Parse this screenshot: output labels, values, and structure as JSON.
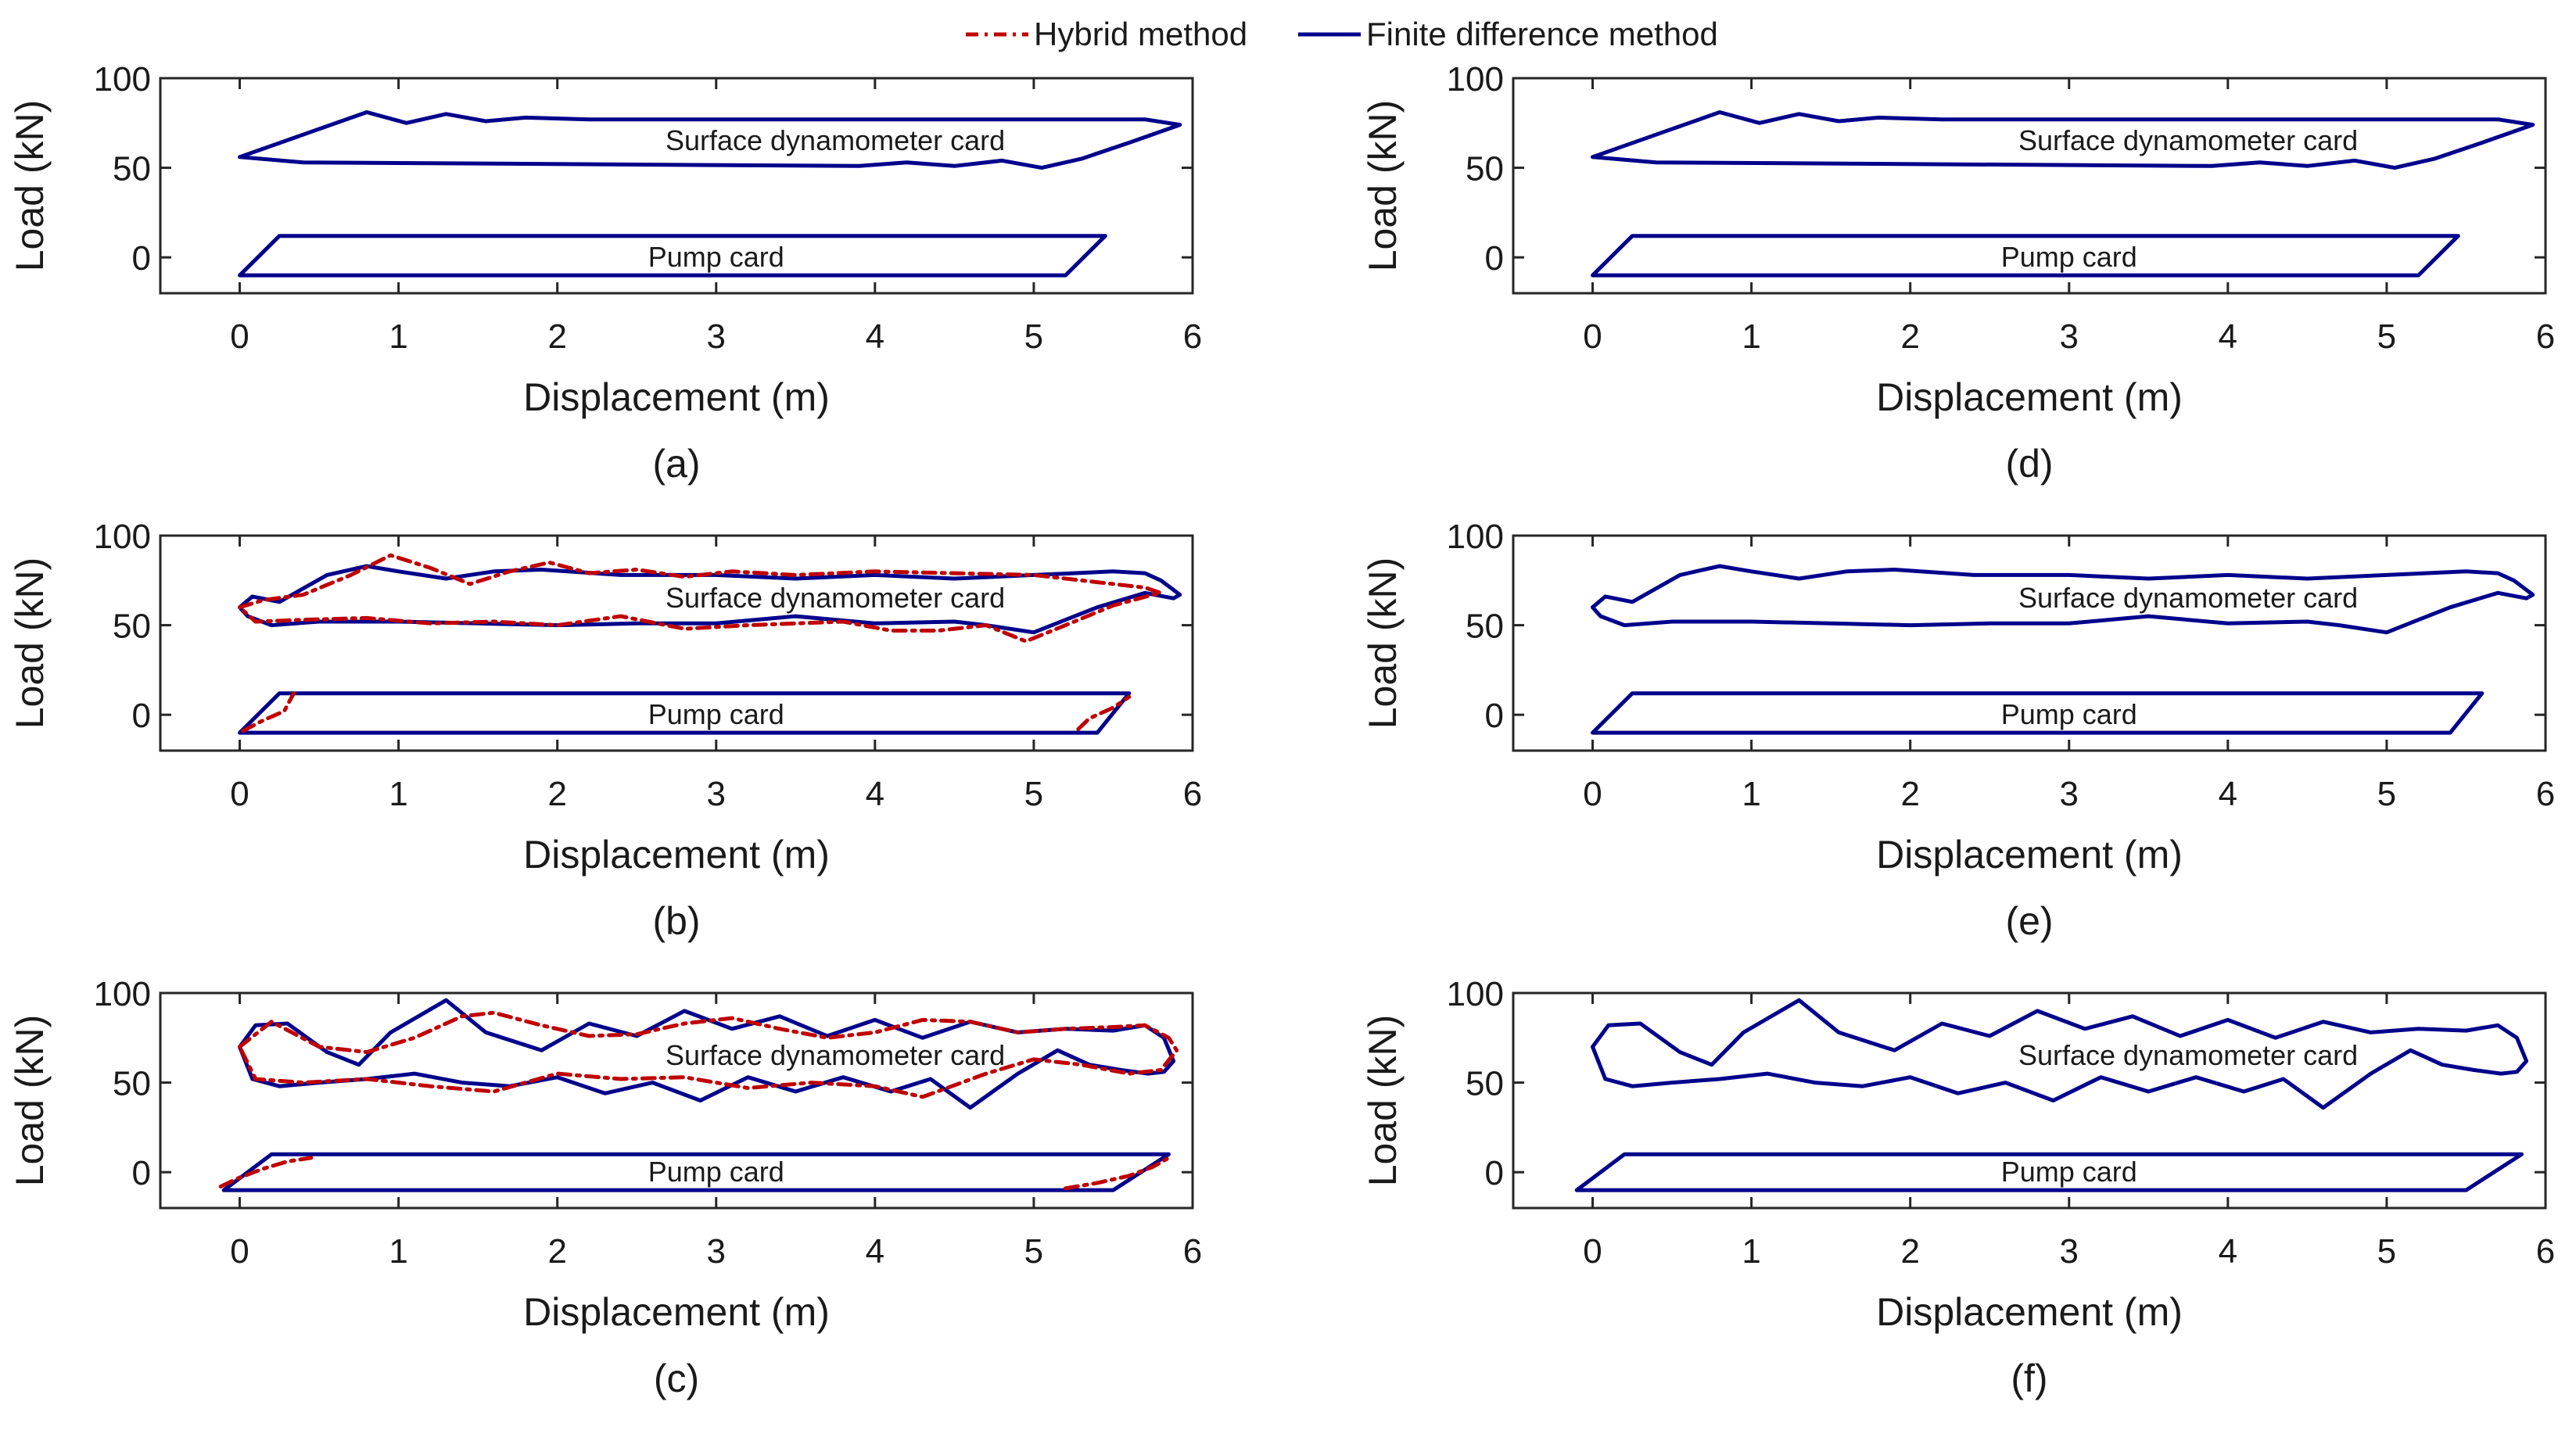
{
  "legend": [
    {
      "label": "Hybrid method",
      "color": "#c00000",
      "dash": true
    },
    {
      "label": "Finite difference method",
      "color": "#00008b",
      "dash": false
    }
  ],
  "chart_data": [
    {
      "id": "a",
      "type": "line",
      "caption": "(a)",
      "xlabel": "Displacement (m)",
      "ylabel": "Load (kN)",
      "xlim": [
        -0.5,
        6
      ],
      "ylim": [
        -20,
        100
      ],
      "xticks": [
        "0",
        "1",
        "2",
        "3",
        "4",
        "5",
        "6"
      ],
      "yticks": [
        "0",
        "50",
        "100"
      ],
      "annotations": [
        {
          "text": "Surface dynamometer card",
          "x": 3.75,
          "y": 65
        },
        {
          "text": "Pump card",
          "x": 3.0,
          "y": 0
        }
      ],
      "series": [
        {
          "name": "Finite difference method",
          "x": [
            0,
            0.8,
            1.05,
            1.3,
            1.55,
            1.8,
            2.2,
            5.7,
            5.92,
            5.6,
            5.3,
            5.05,
            4.8,
            4.5,
            4.2,
            3.9,
            0.4,
            0
          ],
          "y": [
            56,
            81,
            75,
            80,
            76,
            78,
            77,
            77,
            74,
            64,
            55,
            50,
            54,
            51,
            53,
            51,
            53,
            56
          ]
        },
        {
          "name": "Finite difference method",
          "x": [
            0,
            0.25,
            5.45,
            5.2,
            0
          ],
          "y": [
            -10,
            12,
            12,
            -10,
            -10
          ]
        }
      ]
    },
    {
      "id": "b",
      "type": "line",
      "caption": "(b)",
      "xlabel": "Displacement (m)",
      "ylabel": "Load (kN)",
      "xlim": [
        -0.5,
        6
      ],
      "ylim": [
        -20,
        100
      ],
      "xticks": [
        "0",
        "1",
        "2",
        "3",
        "4",
        "5",
        "6"
      ],
      "yticks": [
        "0",
        "50",
        "100"
      ],
      "annotations": [
        {
          "text": "Surface dynamometer card",
          "x": 3.75,
          "y": 65
        },
        {
          "text": "Pump card",
          "x": 3.0,
          "y": 0
        }
      ],
      "series": [
        {
          "name": "Finite difference method",
          "x": [
            0,
            0.08,
            0.25,
            0.55,
            0.8,
            1.0,
            1.3,
            1.6,
            1.9,
            2.4,
            3.0,
            3.5,
            4.0,
            4.5,
            5.0,
            5.5,
            5.7,
            5.8,
            5.92,
            5.88,
            5.7,
            5.4,
            5.2,
            5.0,
            4.7,
            4.5,
            4.0,
            3.5,
            3.0,
            2.5,
            2.0,
            1.5,
            1.0,
            0.5,
            0.2,
            0.05,
            0
          ],
          "y": [
            60,
            66,
            63,
            78,
            83,
            80,
            76,
            80,
            81,
            78,
            78,
            76,
            78,
            76,
            78,
            80,
            79,
            75,
            67,
            65,
            68,
            60,
            53,
            46,
            50,
            52,
            51,
            55,
            51,
            51,
            50,
            51,
            52,
            52,
            50,
            55,
            60
          ]
        },
        {
          "name": "Hybrid method",
          "x": [
            0,
            0.15,
            0.4,
            0.7,
            0.95,
            1.2,
            1.45,
            1.7,
            1.95,
            2.2,
            2.5,
            2.8,
            3.1,
            3.5,
            4.0,
            4.5,
            5.0,
            5.4,
            5.7,
            5.8,
            5.75,
            5.5,
            5.2,
            4.95,
            4.7,
            4.4,
            4.1,
            3.8,
            3.5,
            3.2,
            2.8,
            2.4,
            2.0,
            1.6,
            1.2,
            0.8,
            0.4,
            0.1,
            0
          ],
          "y": [
            60,
            64,
            67,
            78,
            89,
            82,
            73,
            80,
            85,
            79,
            81,
            77,
            80,
            78,
            80,
            79,
            78,
            74,
            71,
            68,
            67,
            61,
            50,
            41,
            50,
            47,
            47,
            52,
            51,
            50,
            48,
            55,
            50,
            52,
            51,
            54,
            53,
            52,
            60
          ]
        },
        {
          "name": "Finite difference method",
          "x": [
            0,
            0.25,
            5.6,
            5.4,
            0
          ],
          "y": [
            -10,
            12,
            12,
            -10,
            -10
          ]
        },
        {
          "name": "Hybrid method",
          "x": [
            0.02,
            0.15,
            0.28,
            0.34
          ],
          "y": [
            -9,
            -3,
            2,
            12
          ]
        },
        {
          "name": "Hybrid method",
          "x": [
            5.28,
            5.35,
            5.5,
            5.6
          ],
          "y": [
            -8,
            -2,
            4,
            10
          ]
        }
      ]
    },
    {
      "id": "c",
      "type": "line",
      "caption": "(c)",
      "xlabel": "Displacement (m)",
      "ylabel": "Load (kN)",
      "xlim": [
        -0.5,
        6
      ],
      "ylim": [
        -20,
        100
      ],
      "xticks": [
        "0",
        "1",
        "2",
        "3",
        "4",
        "5",
        "6"
      ],
      "yticks": [
        "0",
        "50",
        "100"
      ],
      "annotations": [
        {
          "text": "Surface dynamometer card",
          "x": 3.75,
          "y": 65
        },
        {
          "text": "Pump card",
          "x": 3.0,
          "y": 0
        }
      ],
      "series": [
        {
          "name": "Finite difference method",
          "x": [
            0,
            0.1,
            0.3,
            0.55,
            0.75,
            0.95,
            1.3,
            1.55,
            1.9,
            2.2,
            2.5,
            2.8,
            3.1,
            3.4,
            3.7,
            4.0,
            4.3,
            4.6,
            4.9,
            5.2,
            5.5,
            5.7,
            5.82,
            5.88,
            5.82,
            5.72,
            5.55,
            5.35,
            5.15,
            4.9,
            4.6,
            4.35,
            4.1,
            3.8,
            3.5,
            3.2,
            2.9,
            2.6,
            2.3,
            2.0,
            1.7,
            1.4,
            1.1,
            0.8,
            0.5,
            0.25,
            0.08,
            0
          ],
          "y": [
            70,
            82,
            83,
            67,
            60,
            78,
            96,
            78,
            68,
            83,
            76,
            90,
            80,
            87,
            76,
            85,
            75,
            84,
            78,
            80,
            79,
            82,
            75,
            62,
            56,
            55,
            57,
            60,
            68,
            55,
            36,
            52,
            45,
            53,
            45,
            53,
            40,
            50,
            44,
            53,
            48,
            50,
            55,
            52,
            50,
            48,
            52,
            70
          ]
        },
        {
          "name": "Hybrid method",
          "x": [
            0,
            0.2,
            0.5,
            0.8,
            1.1,
            1.4,
            1.6,
            1.9,
            2.2,
            2.5,
            2.8,
            3.1,
            3.4,
            3.7,
            4.0,
            4.3,
            4.6,
            4.9,
            5.2,
            5.5,
            5.7,
            5.85,
            5.9,
            5.8,
            5.6,
            5.3,
            5.0,
            4.7,
            4.3,
            4.0,
            3.6,
            3.2,
            2.8,
            2.4,
            2.0,
            1.6,
            1.2,
            0.8,
            0.4,
            0.1,
            0
          ],
          "y": [
            70,
            84,
            70,
            67,
            75,
            87,
            89,
            82,
            76,
            77,
            83,
            86,
            80,
            75,
            78,
            85,
            84,
            78,
            80,
            81,
            82,
            75,
            68,
            57,
            55,
            60,
            63,
            55,
            42,
            48,
            50,
            47,
            53,
            52,
            55,
            45,
            48,
            52,
            50,
            52,
            70
          ]
        },
        {
          "name": "Finite difference method",
          "x": [
            -0.1,
            0.2,
            5.85,
            5.5,
            -0.1
          ],
          "y": [
            -10,
            10,
            10,
            -10,
            -10
          ]
        },
        {
          "name": "Hybrid method",
          "x": [
            -0.12,
            0,
            0.15,
            0.3,
            0.45
          ],
          "y": [
            -8,
            -3,
            2,
            6,
            8
          ]
        },
        {
          "name": "Hybrid method",
          "x": [
            5.2,
            5.4,
            5.6,
            5.75,
            5.85
          ],
          "y": [
            -9,
            -6,
            -2,
            3,
            8
          ]
        }
      ]
    },
    {
      "id": "d",
      "type": "line",
      "caption": "(d)",
      "xlabel": "Displacement (m)",
      "ylabel": "Load (kN)",
      "xlim": [
        -0.5,
        6
      ],
      "ylim": [
        -20,
        100
      ],
      "xticks": [
        "0",
        "1",
        "2",
        "3",
        "4",
        "5",
        "6"
      ],
      "yticks": [
        "0",
        "50",
        "100"
      ],
      "annotations": [
        {
          "text": "Surface dynamometer card",
          "x": 3.75,
          "y": 65
        },
        {
          "text": "Pump card",
          "x": 3.0,
          "y": 0
        }
      ],
      "series": [
        {
          "name": "Finite difference method",
          "x": [
            0,
            0.8,
            1.05,
            1.3,
            1.55,
            1.8,
            2.2,
            5.7,
            5.92,
            5.6,
            5.3,
            5.05,
            4.8,
            4.5,
            4.2,
            3.9,
            0.4,
            0
          ],
          "y": [
            56,
            81,
            75,
            80,
            76,
            78,
            77,
            77,
            74,
            64,
            55,
            50,
            54,
            51,
            53,
            51,
            53,
            56
          ]
        },
        {
          "name": "Finite difference method",
          "x": [
            0,
            0.25,
            5.45,
            5.2,
            0
          ],
          "y": [
            -10,
            12,
            12,
            -10,
            -10
          ]
        }
      ]
    },
    {
      "id": "e",
      "type": "line",
      "caption": "(e)",
      "xlabel": "Displacement (m)",
      "ylabel": "Load (kN)",
      "xlim": [
        -0.5,
        6
      ],
      "ylim": [
        -20,
        100
      ],
      "xticks": [
        "0",
        "1",
        "2",
        "3",
        "4",
        "5",
        "6"
      ],
      "yticks": [
        "0",
        "50",
        "100"
      ],
      "annotations": [
        {
          "text": "Surface dynamometer card",
          "x": 3.75,
          "y": 65
        },
        {
          "text": "Pump card",
          "x": 3.0,
          "y": 0
        }
      ],
      "series": [
        {
          "name": "Finite difference method",
          "x": [
            0,
            0.08,
            0.25,
            0.55,
            0.8,
            1.0,
            1.3,
            1.6,
            1.9,
            2.4,
            3.0,
            3.5,
            4.0,
            4.5,
            5.0,
            5.5,
            5.7,
            5.8,
            5.92,
            5.88,
            5.7,
            5.4,
            5.2,
            5.0,
            4.7,
            4.5,
            4.0,
            3.5,
            3.0,
            2.5,
            2.0,
            1.5,
            1.0,
            0.5,
            0.2,
            0.05,
            0
          ],
          "y": [
            60,
            66,
            63,
            78,
            83,
            80,
            76,
            80,
            81,
            78,
            78,
            76,
            78,
            76,
            78,
            80,
            79,
            75,
            67,
            65,
            68,
            60,
            53,
            46,
            50,
            52,
            51,
            55,
            51,
            51,
            50,
            51,
            52,
            52,
            50,
            55,
            60
          ]
        },
        {
          "name": "Finite difference method",
          "x": [
            0,
            0.25,
            5.6,
            5.4,
            0
          ],
          "y": [
            -10,
            12,
            12,
            -10,
            -10
          ]
        }
      ]
    },
    {
      "id": "f",
      "type": "line",
      "caption": "(f)",
      "xlabel": "Displacement (m)",
      "ylabel": "Load (kN)",
      "xlim": [
        -0.5,
        6
      ],
      "ylim": [
        -20,
        100
      ],
      "xticks": [
        "0",
        "1",
        "2",
        "3",
        "4",
        "5",
        "6"
      ],
      "yticks": [
        "0",
        "50",
        "100"
      ],
      "annotations": [
        {
          "text": "Surface dynamometer card",
          "x": 3.75,
          "y": 65
        },
        {
          "text": "Pump card",
          "x": 3.0,
          "y": 0
        }
      ],
      "series": [
        {
          "name": "Finite difference method",
          "x": [
            0,
            0.1,
            0.3,
            0.55,
            0.75,
            0.95,
            1.3,
            1.55,
            1.9,
            2.2,
            2.5,
            2.8,
            3.1,
            3.4,
            3.7,
            4.0,
            4.3,
            4.6,
            4.9,
            5.2,
            5.5,
            5.7,
            5.82,
            5.88,
            5.82,
            5.72,
            5.55,
            5.35,
            5.15,
            4.9,
            4.6,
            4.35,
            4.1,
            3.8,
            3.5,
            3.2,
            2.9,
            2.6,
            2.3,
            2.0,
            1.7,
            1.4,
            1.1,
            0.8,
            0.5,
            0.25,
            0.08,
            0
          ],
          "y": [
            70,
            82,
            83,
            67,
            60,
            78,
            96,
            78,
            68,
            83,
            76,
            90,
            80,
            87,
            76,
            85,
            75,
            84,
            78,
            80,
            79,
            82,
            75,
            62,
            56,
            55,
            57,
            60,
            68,
            55,
            36,
            52,
            45,
            53,
            45,
            53,
            40,
            50,
            44,
            53,
            48,
            50,
            55,
            52,
            50,
            48,
            52,
            70
          ]
        },
        {
          "name": "Finite difference method",
          "x": [
            -0.1,
            0.2,
            5.85,
            5.5,
            -0.1
          ],
          "y": [
            -10,
            10,
            10,
            -10,
            -10
          ]
        }
      ]
    }
  ]
}
